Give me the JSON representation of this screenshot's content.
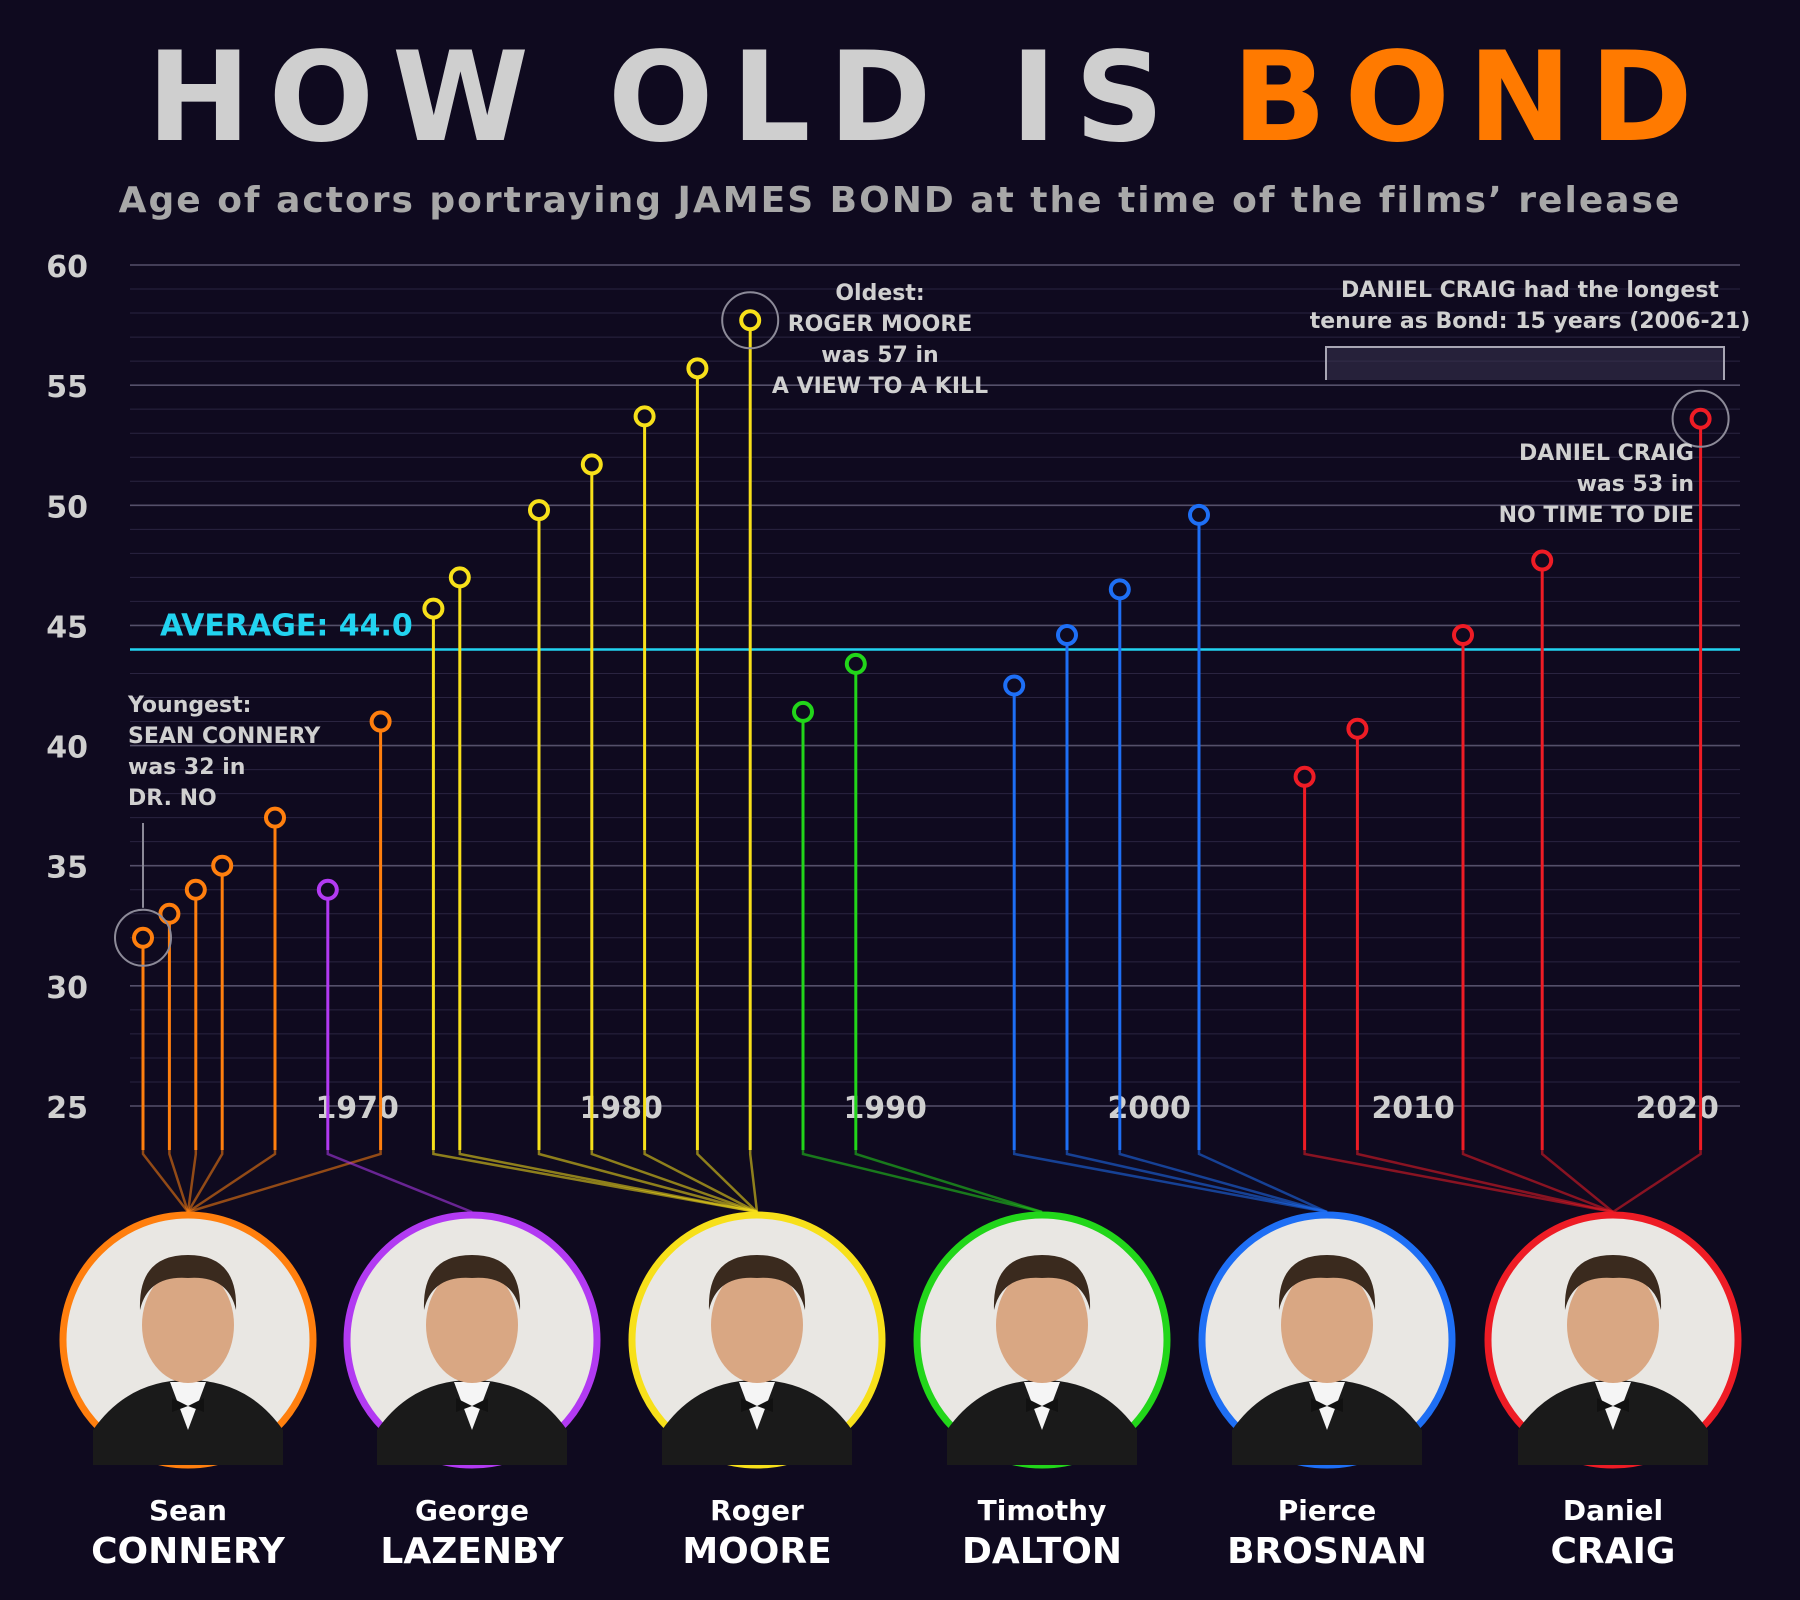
{
  "title": {
    "part1": "HOW OLD IS",
    "part2": "BOND"
  },
  "subtitle": "Age of actors portraying JAMES BOND at the time of the films’ release",
  "colors": {
    "background": "#0f0a1f",
    "title_gray": "#cfcfcf",
    "title_orange": "#ff7a00",
    "average": "#22d3f0",
    "grid": "#3b3550",
    "connery": "#ff7f0e",
    "lazenby": "#b23af2",
    "moore": "#f7e01a",
    "dalton": "#22d61a",
    "brosnan": "#1e6ff5",
    "craig": "#ee1c25"
  },
  "chart_data": {
    "type": "scatter",
    "style": "lollipop",
    "ylim": [
      25,
      60
    ],
    "yticks": [
      25,
      30,
      35,
      40,
      45,
      50,
      55,
      60
    ],
    "xlim": [
      1960,
      2022
    ],
    "xticks": [
      1970,
      1980,
      1990,
      2000,
      2010,
      2020
    ],
    "grid": true,
    "average": {
      "label": "AVERAGE: 44.0",
      "value": 44.0
    },
    "series": [
      {
        "name": "CONNERY",
        "first_name": "Sean",
        "color": "#ff7f0e",
        "points": [
          {
            "x": 1962,
            "y": 32
          },
          {
            "x": 1963,
            "y": 33
          },
          {
            "x": 1964,
            "y": 34
          },
          {
            "x": 1965,
            "y": 35
          },
          {
            "x": 1967,
            "y": 37
          },
          {
            "x": 1971,
            "y": 41
          }
        ]
      },
      {
        "name": "LAZENBY",
        "first_name": "George",
        "color": "#b23af2",
        "points": [
          {
            "x": 1969,
            "y": 34
          }
        ]
      },
      {
        "name": "MOORE",
        "first_name": "Roger",
        "color": "#f7e01a",
        "points": [
          {
            "x": 1973,
            "y": 45.7
          },
          {
            "x": 1974,
            "y": 47
          },
          {
            "x": 1977,
            "y": 49.8
          },
          {
            "x": 1979,
            "y": 51.7
          },
          {
            "x": 1981,
            "y": 53.7
          },
          {
            "x": 1983,
            "y": 55.7
          },
          {
            "x": 1985,
            "y": 57.7
          }
        ]
      },
      {
        "name": "DALTON",
        "first_name": "Timothy",
        "color": "#22d61a",
        "points": [
          {
            "x": 1987,
            "y": 41.4
          },
          {
            "x": 1989,
            "y": 43.4
          }
        ]
      },
      {
        "name": "BROSNAN",
        "first_name": "Pierce",
        "color": "#1e6ff5",
        "points": [
          {
            "x": 1995,
            "y": 42.5
          },
          {
            "x": 1997,
            "y": 44.6
          },
          {
            "x": 1999,
            "y": 46.5
          },
          {
            "x": 2002,
            "y": 49.6
          }
        ]
      },
      {
        "name": "CRAIG",
        "first_name": "Daniel",
        "color": "#ee1c25",
        "points": [
          {
            "x": 2006,
            "y": 38.7
          },
          {
            "x": 2008,
            "y": 40.7
          },
          {
            "x": 2012,
            "y": 44.6
          },
          {
            "x": 2015,
            "y": 47.7
          },
          {
            "x": 2021,
            "y": 53.6
          }
        ]
      }
    ],
    "annotations": {
      "youngest": [
        "Youngest:",
        "SEAN CONNERY",
        "was 32 in",
        "DR. NO"
      ],
      "oldest": [
        "Oldest:",
        "ROGER MOORE",
        "was 57 in",
        "A VIEW TO A KILL"
      ],
      "tenure": [
        "DANIEL CRAIG had the longest",
        "tenure as Bond: 15 years (2006-21)"
      ],
      "craig_latest": [
        "DANIEL CRAIG",
        "was 53 in",
        "NO TIME TO DIE"
      ]
    }
  },
  "actors": [
    {
      "first": "Sean",
      "last": "CONNERY",
      "color": "#ff7f0e"
    },
    {
      "first": "George",
      "last": "LAZENBY",
      "color": "#b23af2"
    },
    {
      "first": "Roger",
      "last": "MOORE",
      "color": "#f7e01a"
    },
    {
      "first": "Timothy",
      "last": "DALTON",
      "color": "#22d61a"
    },
    {
      "first": "Pierce",
      "last": "BROSNAN",
      "color": "#1e6ff5"
    },
    {
      "first": "Daniel",
      "last": "CRAIG",
      "color": "#ee1c25"
    }
  ]
}
